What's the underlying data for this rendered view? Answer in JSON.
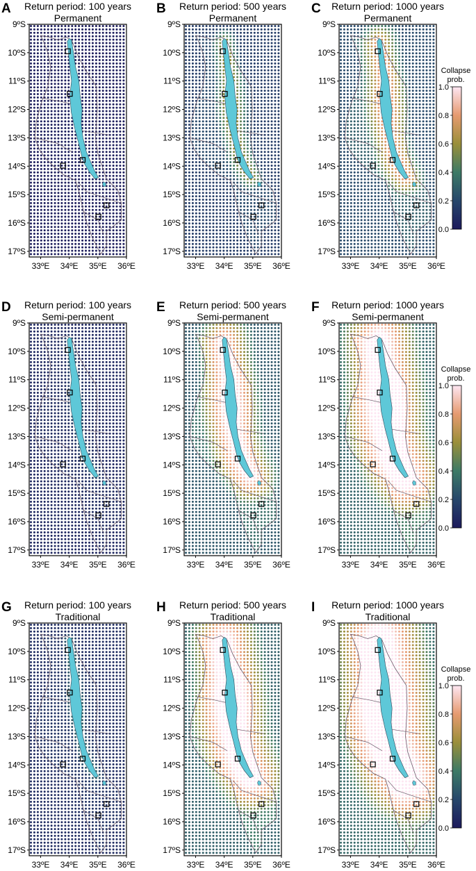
{
  "chart_data": {
    "type": "heatmap",
    "grid": true,
    "lat_ticks": [
      "9ºS",
      "10ºS",
      "11ºS",
      "12ºS",
      "13ºS",
      "14ºS",
      "15ºS",
      "16ºS",
      "17ºS"
    ],
    "lon_ticks": [
      "33ºE",
      "34ºE",
      "35ºE",
      "36ºE"
    ],
    "xlim": [
      32.6,
      36.0
    ],
    "ylim": [
      -17.2,
      -9.0
    ],
    "colorbar": {
      "label_line1": "Collapse",
      "label_line2": "prob.",
      "ticks": [
        "0.0",
        "0.2",
        "0.4",
        "0.6",
        "0.8",
        "1.0"
      ],
      "range": [
        0.0,
        1.0
      ]
    },
    "colors": {
      "lake": "#5ec8d8",
      "dot_low": "#1c1a5c",
      "dot_mid": "#3c6e6a",
      "dot_midhigh": "#b8923a",
      "dot_high": "#f2c8d8",
      "colormap": [
        "#1c1a5c",
        "#27476b",
        "#3d7a66",
        "#9a8f3a",
        "#e69a70",
        "#fde6f2"
      ]
    },
    "sites": [
      [
        -9.95,
        33.95
      ],
      [
        -11.45,
        34.02
      ],
      [
        -13.78,
        34.47
      ],
      [
        -13.98,
        33.78
      ],
      [
        -15.38,
        35.3
      ],
      [
        -15.78,
        35.02
      ]
    ],
    "panels": [
      {
        "letter": "A",
        "title": "Return period: 100 years",
        "subtitle": "Permanent",
        "level": 0.05
      },
      {
        "letter": "B",
        "title": "Return period: 500 years",
        "subtitle": "Permanent",
        "level": 0.45
      },
      {
        "letter": "C",
        "title": "Return period: 1000 years",
        "subtitle": "Permanent",
        "level": 0.62
      },
      {
        "letter": "D",
        "title": "Return period: 100 years",
        "subtitle": "Semi-permanent",
        "level": 0.18
      },
      {
        "letter": "E",
        "title": "Return period: 500 years",
        "subtitle": "Semi-permanent",
        "level": 0.75
      },
      {
        "letter": "F",
        "title": "Return period: 1000 years",
        "subtitle": "Semi-permanent",
        "level": 0.88
      },
      {
        "letter": "G",
        "title": "Return period: 100 years",
        "subtitle": "Traditional",
        "level": 0.25
      },
      {
        "letter": "H",
        "title": "Return period: 500 years",
        "subtitle": "Traditional",
        "level": 0.85
      },
      {
        "letter": "I",
        "title": "Return period: 1000 years",
        "subtitle": "Traditional",
        "level": 0.95
      }
    ]
  }
}
